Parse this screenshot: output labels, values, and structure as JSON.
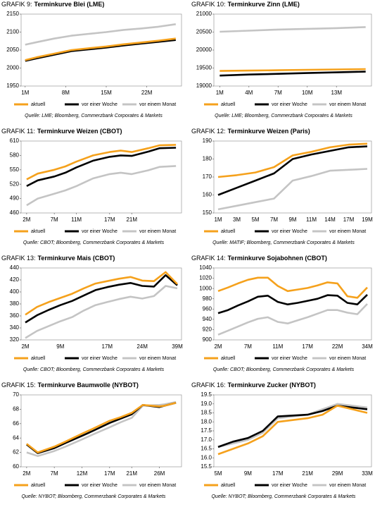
{
  "chart_data": [
    {
      "type": "line",
      "label": "GRAFIK 9:",
      "title": "Terminkurve Blei (LME)",
      "source": "Quelle: LME; Bloomberg, Commerzbank Corporates & Markets",
      "x": [
        1,
        3,
        6,
        9,
        12,
        15,
        18,
        21,
        24,
        27
      ],
      "xlim": [
        0.3,
        28
      ],
      "xticks": [
        {
          "value": 1,
          "label": "1M"
        },
        {
          "value": 8,
          "label": "8M"
        },
        {
          "value": 15,
          "label": "15M"
        },
        {
          "value": 22,
          "label": "22M"
        }
      ],
      "ylim": [
        1950,
        2150
      ],
      "yticks": [
        1950,
        2000,
        2050,
        2100,
        2150
      ],
      "series": [
        {
          "name": "aktuell",
          "color": "#f5a11c",
          "values": [
            2022,
            2030,
            2040,
            2050,
            2055,
            2060,
            2066,
            2071,
            2076,
            2082
          ]
        },
        {
          "name": "vor einer Woche",
          "color": "#000000",
          "values": [
            2020,
            2027,
            2037,
            2047,
            2052,
            2057,
            2063,
            2068,
            2073,
            2078
          ]
        },
        {
          "name": "vor einem Monat",
          "color": "#c4c4c4",
          "values": [
            2065,
            2072,
            2082,
            2090,
            2095,
            2100,
            2106,
            2110,
            2115,
            2122
          ]
        }
      ]
    },
    {
      "type": "line",
      "label": "GRAFIK 10:",
      "title": "Terminkurve Zinn (LME)",
      "source": "Quelle: LME; Bloomberg, Commerzbank Corporates & Markets",
      "x": [
        1,
        4,
        7,
        10,
        13,
        16
      ],
      "xlim": [
        0.4,
        16.6
      ],
      "xticks": [
        {
          "value": 1,
          "label": "1M"
        },
        {
          "value": 4,
          "label": "4M"
        },
        {
          "value": 7,
          "label": "7M"
        },
        {
          "value": 10,
          "label": "10M"
        },
        {
          "value": 13,
          "label": "13M"
        }
      ],
      "ylim": [
        19000,
        21000
      ],
      "yticks": [
        19000,
        19500,
        20000,
        20500,
        21000
      ],
      "series": [
        {
          "name": "aktuell",
          "color": "#f5a11c",
          "values": [
            19420,
            19430,
            19440,
            19450,
            19460,
            19470
          ]
        },
        {
          "name": "vor einer Woche",
          "color": "#000000",
          "values": [
            19290,
            19320,
            19340,
            19360,
            19380,
            19400
          ]
        },
        {
          "name": "vor einem Monat",
          "color": "#c4c4c4",
          "values": [
            20510,
            20540,
            20570,
            20590,
            20610,
            20640
          ]
        }
      ]
    },
    {
      "type": "line",
      "label": "GRAFIK 11:",
      "title": "Terminkurve Weizen (CBOT)",
      "source": "Quelle: CBOT; Bloomberg, Commerzbank Corporates & Markets",
      "x": [
        2,
        4,
        7,
        9,
        11,
        14,
        17,
        19,
        21,
        24,
        26,
        29
      ],
      "xlim": [
        1,
        30
      ],
      "xticks": [
        {
          "value": 2,
          "label": "2M"
        },
        {
          "value": 7,
          "label": "7M"
        },
        {
          "value": 11,
          "label": "11M"
        },
        {
          "value": 17,
          "label": "17M"
        },
        {
          "value": 21,
          "label": "21M"
        }
      ],
      "ylim": [
        460,
        610
      ],
      "yticks": [
        460,
        490,
        520,
        550,
        580,
        610
      ],
      "series": [
        {
          "name": "aktuell",
          "color": "#f5a11c",
          "values": [
            530,
            542,
            550,
            557,
            567,
            580,
            587,
            590,
            587,
            595,
            601,
            602
          ]
        },
        {
          "name": "vor einer Woche",
          "color": "#000000",
          "values": [
            516,
            528,
            536,
            544,
            555,
            569,
            577,
            580,
            579,
            588,
            595,
            596
          ]
        },
        {
          "name": "vor einem Monat",
          "color": "#c4c4c4",
          "values": [
            476,
            490,
            500,
            507,
            516,
            532,
            541,
            544,
            541,
            549,
            556,
            558
          ]
        }
      ]
    },
    {
      "type": "line",
      "label": "GRAFIK 12:",
      "title": "Terminkurve Weizen (Paris)",
      "source": "Quelle: MATIF; Bloomberg, Commerzbank Corporates & Markets",
      "categories": [
        "1M",
        "3M",
        "5M",
        "7M",
        "9M",
        "11M",
        "14M",
        "17M",
        "19M"
      ],
      "ylim": [
        150,
        190
      ],
      "yticks": [
        150,
        160,
        170,
        180,
        190
      ],
      "series": [
        {
          "name": "aktuell",
          "color": "#f5a11c",
          "values": [
            170,
            171,
            172.5,
            175.5,
            182,
            184,
            186.5,
            188,
            188.5
          ]
        },
        {
          "name": "vor einer Woche",
          "color": "#000000",
          "values": [
            160,
            164,
            168,
            172,
            180,
            182.5,
            184.5,
            186.5,
            187
          ]
        },
        {
          "name": "vor einem Monat",
          "color": "#c4c4c4",
          "values": [
            152,
            154,
            156,
            158,
            168,
            170.5,
            173.5,
            174,
            174.5
          ]
        }
      ]
    },
    {
      "type": "line",
      "label": "GRAFIK 13:",
      "title": "Terminkurve Mais (CBOT)",
      "source": "Quelle: CBOT; Bloomberg, Commerzbank Corporates & Markets",
      "categories": [
        "2M",
        null,
        null,
        "9M",
        null,
        null,
        null,
        "17M",
        null,
        null,
        "24M",
        null,
        null,
        "39M"
      ],
      "ylim": [
        320,
        440
      ],
      "yticks": [
        320,
        340,
        360,
        380,
        400,
        420,
        440
      ],
      "series": [
        {
          "name": "aktuell",
          "color": "#f5a11c",
          "values": [
            362,
            375,
            383,
            390,
            397,
            406,
            414,
            418,
            422,
            425,
            419,
            418,
            433,
            413
          ]
        },
        {
          "name": "vor einer Woche",
          "color": "#000000",
          "values": [
            349,
            361,
            370,
            378,
            385,
            394,
            403,
            408,
            412,
            415,
            410,
            409,
            428,
            411
          ]
        },
        {
          "name": "vor einem Monat",
          "color": "#c4c4c4",
          "values": [
            323,
            335,
            343,
            351,
            358,
            369,
            378,
            383,
            388,
            392,
            389,
            393,
            410,
            406
          ]
        }
      ]
    },
    {
      "type": "line",
      "label": "GRAFIK 14:",
      "title": "Terminkurve Sojabohnen (CBOT)",
      "source": "Quelle: CBOT; Bloomberg, Commerzbank Corporates & Markets",
      "categories": [
        "2M",
        null,
        null,
        "7M",
        null,
        null,
        "11M",
        null,
        null,
        "17M",
        null,
        null,
        "22M",
        null,
        null,
        "34M"
      ],
      "ylim": [
        900,
        1040
      ],
      "yticks": [
        900,
        920,
        940,
        960,
        980,
        1000,
        1020,
        1040
      ],
      "series": [
        {
          "name": "aktuell",
          "color": "#f5a11c",
          "values": [
            995,
            1002,
            1010,
            1017,
            1021,
            1021,
            1005,
            995,
            998,
            1001,
            1006,
            1012,
            1010,
            985,
            982,
            1002
          ]
        },
        {
          "name": "vor einer Woche",
          "color": "#000000",
          "values": [
            952,
            958,
            967,
            975,
            984,
            986,
            974,
            969,
            972,
            976,
            980,
            987,
            986,
            972,
            969,
            988
          ]
        },
        {
          "name": "vor einem Monat",
          "color": "#c4c4c4",
          "values": [
            910,
            918,
            926,
            934,
            941,
            944,
            935,
            932,
            938,
            944,
            951,
            958,
            958,
            953,
            950,
            970
          ]
        }
      ]
    },
    {
      "type": "line",
      "label": "GRAFIK 15:",
      "title": "Terminkurve Baumwolle (NYBOT)",
      "source": "Quelle: NYBOT; Bloomberg, Commerzbank Corporates & Markets",
      "x": [
        2,
        4,
        7,
        9,
        12,
        14,
        17,
        19,
        21,
        23,
        26,
        27,
        29
      ],
      "xlim": [
        1,
        30
      ],
      "xticks": [
        {
          "value": 2,
          "label": "2M"
        },
        {
          "value": 7,
          "label": "7M"
        },
        {
          "value": 12,
          "label": "12M"
        },
        {
          "value": 17,
          "label": "17M"
        },
        {
          "value": 21,
          "label": "21M"
        },
        {
          "value": 26,
          "label": "26M"
        }
      ],
      "ylim": [
        60,
        70
      ],
      "yticks": [
        60,
        62,
        64,
        66,
        68,
        70
      ],
      "series": [
        {
          "name": "aktuell",
          "color": "#f5a11c",
          "values": [
            63.2,
            62.0,
            62.8,
            63.5,
            64.6,
            65.3,
            66.4,
            66.9,
            67.5,
            68.6,
            68.4,
            68.5,
            68.9
          ]
        },
        {
          "name": "vor einer Woche",
          "color": "#000000",
          "values": [
            63.1,
            61.9,
            62.6,
            63.3,
            64.3,
            65.0,
            66.1,
            66.7,
            67.3,
            68.6,
            68.3,
            68.5,
            68.9
          ]
        },
        {
          "name": "vor einem Monat",
          "color": "#c4c4c4",
          "values": [
            62.0,
            61.5,
            62.2,
            62.8,
            63.8,
            64.5,
            65.5,
            66.2,
            66.8,
            68.5,
            68.6,
            68.7,
            69.0
          ]
        }
      ]
    },
    {
      "type": "line",
      "label": "GRAFIK 16:",
      "title": "Terminkurve Zucker (NYBOT)",
      "source": "Quelle: NYBOT; Bloomberg, Commerzbank Corporates & Markets",
      "categories": [
        "5M",
        null,
        "9M",
        null,
        "17M",
        null,
        "21M",
        null,
        "29M",
        null,
        "33M"
      ],
      "ylim": [
        15.5,
        19.5
      ],
      "yticks": [
        15.5,
        {
          "value": 16,
          "label": "16.0"
        },
        16.5,
        {
          "value": 17,
          "label": "17.0"
        },
        17.5,
        {
          "value": 18,
          "label": "18.0"
        },
        18.5,
        {
          "value": 19,
          "label": "19.0"
        },
        19.5
      ],
      "series": [
        {
          "name": "aktuell",
          "color": "#f5a11c",
          "values": [
            16.2,
            16.5,
            16.8,
            17.2,
            18.0,
            18.1,
            18.2,
            18.4,
            18.9,
            18.7,
            18.5
          ]
        },
        {
          "name": "vor einer Woche",
          "color": "#000000",
          "values": [
            16.6,
            16.9,
            17.1,
            17.5,
            18.3,
            18.35,
            18.4,
            18.6,
            18.9,
            18.8,
            18.7
          ]
        },
        {
          "name": "vor einem Monat",
          "color": "#c4c4c4",
          "values": [
            16.6,
            16.8,
            17.0,
            17.4,
            18.2,
            18.3,
            18.4,
            18.7,
            19.0,
            18.9,
            18.8
          ]
        }
      ]
    }
  ]
}
